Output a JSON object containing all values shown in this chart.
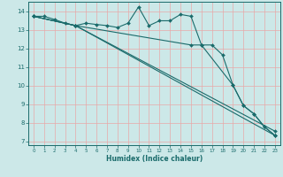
{
  "xlabel": "Humidex (Indice chaleur)",
  "xlim": [
    -0.5,
    23.5
  ],
  "ylim": [
    6.8,
    14.5
  ],
  "yticks": [
    7,
    8,
    9,
    10,
    11,
    12,
    13,
    14
  ],
  "xticks": [
    0,
    1,
    2,
    3,
    4,
    5,
    6,
    7,
    8,
    9,
    10,
    11,
    12,
    13,
    14,
    15,
    16,
    17,
    18,
    19,
    20,
    21,
    22,
    23
  ],
  "bg_color": "#cce8e8",
  "grid_color": "#e8a8a8",
  "line_color": "#1a6b6b",
  "line1_x": [
    0,
    1,
    2,
    3,
    4,
    5,
    6,
    7,
    8,
    9,
    10,
    11,
    12,
    13,
    14,
    15,
    16,
    17,
    18,
    19,
    20,
    21,
    22,
    23
  ],
  "line1_y": [
    13.72,
    13.72,
    13.55,
    13.35,
    13.22,
    13.35,
    13.28,
    13.22,
    13.12,
    13.35,
    14.22,
    13.22,
    13.48,
    13.48,
    13.82,
    13.72,
    12.18,
    12.18,
    11.65,
    10.02,
    8.92,
    8.48,
    7.78,
    7.32
  ],
  "line2_x": [
    0,
    4,
    15,
    16,
    19,
    20,
    21,
    22,
    23
  ],
  "line2_y": [
    13.72,
    13.22,
    12.18,
    12.18,
    10.02,
    8.92,
    8.48,
    7.78,
    7.32
  ],
  "line3_x": [
    0,
    4,
    23
  ],
  "line3_y": [
    13.72,
    13.22,
    7.55
  ],
  "line4_x": [
    0,
    4,
    23
  ],
  "line4_y": [
    13.72,
    13.22,
    7.32
  ]
}
